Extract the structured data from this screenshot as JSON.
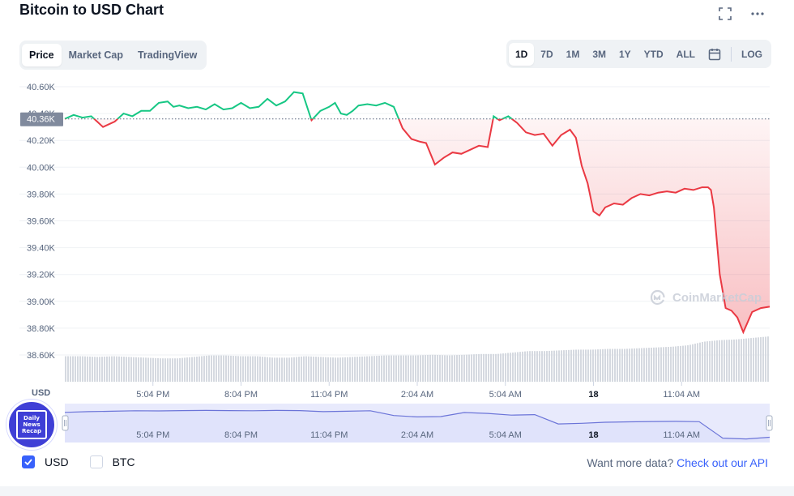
{
  "title": "Bitcoin to USD Chart",
  "top_icons": [
    "expand-icon",
    "more-icon"
  ],
  "view_tabs": [
    {
      "label": "Price",
      "active": true
    },
    {
      "label": "Market Cap",
      "active": false
    },
    {
      "label": "TradingView",
      "active": false
    }
  ],
  "range_tabs": [
    {
      "label": "1D",
      "active": true
    },
    {
      "label": "7D",
      "active": false
    },
    {
      "label": "1M",
      "active": false
    },
    {
      "label": "3M",
      "active": false
    },
    {
      "label": "1Y",
      "active": false
    },
    {
      "label": "YTD",
      "active": false
    },
    {
      "label": "ALL",
      "active": false
    }
  ],
  "log_label": "LOG",
  "watermark": "CoinMarketCap",
  "badge": {
    "line1": "Daily",
    "line2": "News",
    "line3": "Recap"
  },
  "legend": [
    {
      "label": "USD",
      "checked": true
    },
    {
      "label": "BTC",
      "checked": false
    }
  ],
  "footer": {
    "prefix": "Want more data?",
    "link": "Check out our API"
  },
  "colors": {
    "up": "#16c784",
    "down": "#ea3943",
    "accent": "#3861fb",
    "volume": "#d5d9e0",
    "navigator": "#6b74d8"
  },
  "chart_data": {
    "type": "line",
    "ylabel": "USD",
    "y_ticks": [
      "40.60K",
      "40.40K",
      "40.20K",
      "40.00K",
      "39.80K",
      "39.60K",
      "39.40K",
      "39.20K",
      "39.00K",
      "38.80K",
      "38.60K"
    ],
    "ylim": [
      38600,
      40600
    ],
    "x_ticks": [
      "5:04 PM",
      "8:04 PM",
      "11:04 PM",
      "2:04 AM",
      "5:04 AM",
      "18",
      "11:04 AM"
    ],
    "x_ticks_bold": [
      "18"
    ],
    "x_range_hours": [
      0,
      24
    ],
    "x_tick_hours": [
      3,
      6,
      9,
      12,
      15,
      18,
      21
    ],
    "reference_price": 40360,
    "reference_label": "40.36K",
    "series": [
      {
        "color_above": "#16c784",
        "color_below": "#ea3943",
        "x_hours": [
          0,
          0.3,
          0.6,
          0.9,
          1.1,
          1.3,
          1.5,
          1.7,
          2.0,
          2.3,
          2.6,
          2.9,
          3.2,
          3.5,
          3.7,
          3.9,
          4.2,
          4.5,
          4.8,
          5.1,
          5.4,
          5.7,
          6.0,
          6.3,
          6.6,
          6.9,
          7.2,
          7.5,
          7.8,
          8.1,
          8.4,
          8.7,
          9.0,
          9.2,
          9.4,
          9.6,
          9.8,
          10.0,
          10.3,
          10.6,
          10.9,
          11.2,
          11.5,
          11.8,
          12.1,
          12.3,
          12.6,
          12.9,
          13.2,
          13.5,
          13.8,
          14.1,
          14.4,
          14.6,
          14.8,
          15.1,
          15.4,
          15.7,
          16.0,
          16.3,
          16.6,
          16.9,
          17.2,
          17.4,
          17.6,
          17.8,
          18.0,
          18.2,
          18.4,
          18.7,
          19.0,
          19.3,
          19.6,
          19.9,
          20.2,
          20.5,
          20.8,
          21.1,
          21.4,
          21.7,
          21.9,
          22.0,
          22.1,
          22.3,
          22.5,
          22.7,
          22.9,
          23.1,
          23.4,
          23.7,
          24.0
        ],
        "y": [
          40360,
          40390,
          40370,
          40380,
          40340,
          40300,
          40320,
          40340,
          40400,
          40380,
          40420,
          40420,
          40480,
          40490,
          40450,
          40460,
          40440,
          40450,
          40430,
          40470,
          40430,
          40440,
          40480,
          40440,
          40450,
          40510,
          40460,
          40490,
          40560,
          40550,
          40350,
          40420,
          40450,
          40480,
          40400,
          40390,
          40420,
          40460,
          40470,
          40460,
          40480,
          40450,
          40290,
          40210,
          40190,
          40180,
          40020,
          40070,
          40110,
          40100,
          40130,
          40160,
          40150,
          40380,
          40350,
          40380,
          40330,
          40260,
          40240,
          40250,
          40160,
          40240,
          40280,
          40220,
          40010,
          39880,
          39670,
          39640,
          39700,
          39730,
          39720,
          39770,
          39800,
          39790,
          39810,
          39820,
          39810,
          39840,
          39830,
          39850,
          39850,
          39830,
          39700,
          39200,
          38950,
          38930,
          38880,
          38770,
          38920,
          38950,
          38960
        ]
      }
    ],
    "volume_relative": [
      0.35,
      0.35,
      0.34,
      0.35,
      0.34,
      0.33,
      0.32,
      0.32,
      0.34,
      0.36,
      0.36,
      0.35,
      0.35,
      0.33,
      0.33,
      0.35,
      0.34,
      0.33,
      0.34,
      0.35,
      0.36,
      0.36,
      0.36,
      0.37,
      0.36,
      0.37,
      0.38,
      0.38,
      0.4,
      0.42,
      0.42,
      0.43,
      0.44,
      0.44,
      0.45,
      0.45,
      0.46,
      0.47,
      0.48,
      0.5,
      0.55,
      0.57,
      0.58,
      0.6,
      0.62
    ],
    "navigator_series_y": [
      40360,
      40400,
      40420,
      40450,
      40440,
      40460,
      40470,
      40460,
      40450,
      40470,
      40460,
      40400,
      40420,
      40450,
      40180,
      40100,
      40120,
      40350,
      40300,
      40200,
      40230,
      39700,
      39740,
      39800,
      39820,
      39840,
      39850,
      39830,
      38900,
      38850,
      38950
    ]
  }
}
